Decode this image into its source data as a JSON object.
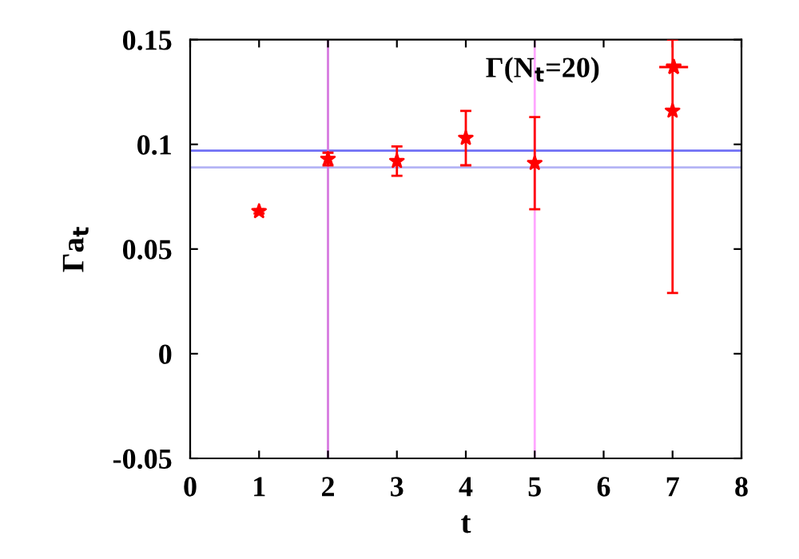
{
  "chart_data": {
    "type": "scatter",
    "xlabel": "t",
    "ylabel": "Γa$_{t}$",
    "x": [
      1,
      2,
      3,
      4,
      5,
      7
    ],
    "series": [
      {
        "name": "Γ(N$_{t}$=20)",
        "color": "#ff0000",
        "values": [
          0.068,
          0.093,
          0.092,
          0.103,
          0.091,
          0.116
        ],
        "errors": [
          0.001,
          0.003,
          0.007,
          0.013,
          0.022,
          [
            0.029,
            0.15
          ]
        ]
      }
    ],
    "marker": "star",
    "legend": "top right",
    "xlim": [
      0,
      8
    ],
    "xticks": [
      0,
      1,
      2,
      3,
      4,
      5,
      6,
      7,
      8
    ],
    "ylim": [
      -0.05,
      0.15
    ],
    "yticks": [
      -0.05,
      0,
      0.05,
      0.1,
      0.15
    ],
    "ref_lines": [
      {
        "axis": "y",
        "value": 0.097,
        "color": "#6f6ff5"
      },
      {
        "axis": "y",
        "value": 0.089,
        "color": "#b4b4f5"
      },
      {
        "axis": "x",
        "value": 2,
        "color": "#d77ae0"
      },
      {
        "axis": "x",
        "value": 5,
        "color": "#ffa6ff"
      }
    ]
  }
}
